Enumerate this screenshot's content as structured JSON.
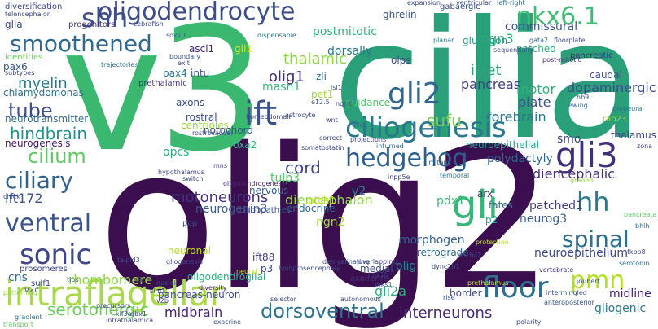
{
  "words": [
    {
      "text": "olig2",
      "color": "#3b0f4f"
    },
    {
      "text": "cilia",
      "color": "#2aa07a"
    },
    {
      "text": "v3",
      "color": "#3ab86f"
    },
    {
      "text": "intraflagellar",
      "color": "#a9d84a"
    },
    {
      "text": "oligodendrocyte",
      "color": "#3d4d8a"
    },
    {
      "text": "ciliogenesis",
      "color": "#2a788e"
    },
    {
      "text": "hedgehog",
      "color": "#2b5f8d"
    },
    {
      "text": "smoothened",
      "color": "#2f6b8e"
    },
    {
      "text": "shh",
      "color": "#3d4e8a"
    },
    {
      "text": "nkx6.1",
      "color": "#3fbc73"
    },
    {
      "text": "ift",
      "color": "#3b528b"
    },
    {
      "text": "gli2",
      "color": "#31668e"
    },
    {
      "text": "gli3",
      "color": "#42307a"
    },
    {
      "text": "gli",
      "color": "#35b779"
    },
    {
      "text": "hh",
      "color": "#2a7b8e"
    },
    {
      "text": "spinal",
      "color": "#2c728e"
    },
    {
      "text": "floor",
      "color": "#2d708e"
    },
    {
      "text": "pmn",
      "color": "#b5de2b"
    },
    {
      "text": "cilium",
      "color": "#5ec962"
    },
    {
      "text": "ciliary",
      "color": "#33638d"
    },
    {
      "text": "ventral",
      "color": "#3a538b"
    },
    {
      "text": "sonic",
      "color": "#3f4788"
    },
    {
      "text": "serotonergic",
      "color": "#6ccd5a"
    },
    {
      "text": "dorsoventral",
      "color": "#2c738e"
    },
    {
      "text": "midbrain",
      "color": "#482677"
    },
    {
      "text": "interneurons",
      "color": "#472a7a"
    },
    {
      "text": "hindbrain",
      "color": "#20928c"
    },
    {
      "text": "tube",
      "color": "#3c4f8a"
    },
    {
      "text": "myelin",
      "color": "#297a8e"
    },
    {
      "text": "motoneurons",
      "color": "#46337e"
    },
    {
      "text": "cord",
      "color": "#404688"
    },
    {
      "text": "sufu",
      "color": "#7ad151"
    },
    {
      "text": "ngn3",
      "color": "#3ba676"
    },
    {
      "text": "thalamic",
      "color": "#8fd744"
    },
    {
      "text": "olig1",
      "color": "#472c7a"
    },
    {
      "text": "zli",
      "color": "#2c728e"
    },
    {
      "text": "mash1",
      "color": "#35b779"
    },
    {
      "text": "islet",
      "color": "#2ea37d"
    },
    {
      "text": "pancreas",
      "color": "#433e85"
    },
    {
      "text": "motor",
      "color": "#2db27d"
    },
    {
      "text": "forebrain",
      "color": "#2a788e"
    },
    {
      "text": "plate",
      "color": "#3b528b"
    },
    {
      "text": "dopaminergic",
      "color": "#3e4a89"
    },
    {
      "text": "smo",
      "color": "#414487"
    },
    {
      "text": "thalamus",
      "color": "#3e4989"
    },
    {
      "text": "neuroepithelial",
      "color": "#1f9f88"
    },
    {
      "text": "polydactyly",
      "color": "#32658e"
    },
    {
      "text": "diencephalic",
      "color": "#472f7d"
    },
    {
      "text": "diencephalon",
      "color": "#90d743"
    },
    {
      "text": "tulp3",
      "color": "#54c568"
    },
    {
      "text": "neurogenin3",
      "color": "#38598c"
    },
    {
      "text": "endocrine",
      "color": "#31678e"
    },
    {
      "text": "ngn2",
      "color": "#9dd93b"
    },
    {
      "text": "ptch1",
      "color": "#c2df23"
    },
    {
      "text": "cilioppathies",
      "color": "#3b528b"
    },
    {
      "text": "nervous",
      "color": "#355f8d"
    },
    {
      "text": "v2",
      "color": "#27808e"
    },
    {
      "text": "pdx1",
      "color": "#3dbc74"
    },
    {
      "text": "arx",
      "color": "#46327e"
    },
    {
      "text": "fates",
      "color": "#2d718e"
    },
    {
      "text": "p2",
      "color": "#20a386"
    },
    {
      "text": "patched1",
      "color": "#443a83"
    },
    {
      "text": "neurog3",
      "color": "#365c8d"
    },
    {
      "text": "neuroepithelium",
      "color": "#3e4989"
    },
    {
      "text": "olig",
      "color": "#25858e"
    },
    {
      "text": "morphogen",
      "color": "#34618d"
    },
    {
      "text": "retrograde",
      "color": "#31688e"
    },
    {
      "text": "midline",
      "color": "#481f70"
    },
    {
      "text": "gliogenic",
      "color": "#2a788e"
    },
    {
      "text": "gli2a",
      "color": "#2ab07f"
    },
    {
      "text": "ift172",
      "color": "#3b528b"
    },
    {
      "text": "rhombomere",
      "color": "#8bd646"
    },
    {
      "text": "cns",
      "color": "#2e6e8e"
    },
    {
      "text": "v2c",
      "color": "#3f4889"
    },
    {
      "text": "oligodendroglial",
      "color": "#29af7f"
    },
    {
      "text": "ift88",
      "color": "#453882"
    },
    {
      "text": "p3",
      "color": "#3e4c8a"
    },
    {
      "text": "neuronal",
      "color": "#b8de29"
    },
    {
      "text": "postmitotic",
      "color": "#2fb47c"
    },
    {
      "text": "dorsally",
      "color": "#2a788e"
    },
    {
      "text": "commissural",
      "color": "#3b528b"
    },
    {
      "text": "glucagon",
      "color": "#1fa088"
    },
    {
      "text": "patched",
      "color": "#2db27d"
    },
    {
      "text": "caudal",
      "color": "#3c508b"
    },
    {
      "text": "olps",
      "color": "#3e4a89"
    },
    {
      "text": "pet1",
      "color": "#a2da37"
    },
    {
      "text": "guidance",
      "color": "#50c46a"
    },
    {
      "text": "chlamydomonas",
      "color": "#2c738e"
    },
    {
      "text": "pax6",
      "color": "#38588c"
    },
    {
      "text": "identities",
      "color": "#6ccd5a"
    },
    {
      "text": "glia",
      "color": "#3e4989"
    },
    {
      "text": "ascl1",
      "color": "#482071"
    },
    {
      "text": "gli1",
      "color": "#d2e21b"
    },
    {
      "text": "pax4",
      "color": "#2b758e"
    },
    {
      "text": "intu",
      "color": "#3a548c"
    },
    {
      "text": "centrioles",
      "color": "#95d840"
    },
    {
      "text": "prethalamic",
      "color": "#46317e"
    },
    {
      "text": "axons",
      "color": "#3c4f8a"
    },
    {
      "text": "rostral",
      "color": "#3e4989"
    },
    {
      "text": "notochord",
      "color": "#3b518b"
    },
    {
      "text": "neurotransmitter",
      "color": "#2e6d8e"
    },
    {
      "text": "neurogenesis",
      "color": "#481769"
    },
    {
      "text": "opcs",
      "color": "#29af7f"
    },
    {
      "text": "foxa2",
      "color": "#2fb47c"
    },
    {
      "text": "ghrelin",
      "color": "#3b528b"
    },
    {
      "text": "diversification",
      "color": "#3e4a89"
    },
    {
      "text": "gabaergic",
      "color": "#3b528b"
    },
    {
      "text": "progenitors",
      "color": "#46337e"
    },
    {
      "text": "telencephalon",
      "color": "#3e4989"
    },
    {
      "text": "zebrafish",
      "color": "#3e4c8a"
    },
    {
      "text": "sox10",
      "color": "#355e8d"
    },
    {
      "text": "dispensable",
      "color": "#2d718e"
    },
    {
      "text": "expansion",
      "color": "#3e4989"
    },
    {
      "text": "ventricular",
      "color": "#3d4d8a"
    },
    {
      "text": "left-right",
      "color": "#2e6f8e"
    },
    {
      "text": "pancreatic",
      "color": "#46307e"
    },
    {
      "text": "floorplate",
      "color": "#3e4a89"
    },
    {
      "text": "gata2",
      "color": "#31688e"
    },
    {
      "text": "post-mitotic",
      "color": "#481f70"
    },
    {
      "text": "sequentially",
      "color": "#3e4a89"
    },
    {
      "text": "planar",
      "color": "#2a788e"
    },
    {
      "text": "hb9",
      "color": "#3b528b"
    },
    {
      "text": "ewing",
      "color": "#33638d"
    },
    {
      "text": "rab23",
      "color": "#9fda3a"
    },
    {
      "text": "proneural",
      "color": "#2c738e"
    },
    {
      "text": "zona",
      "color": "#3f4788"
    },
    {
      "text": "pancreata",
      "color": "#5ec962"
    },
    {
      "text": "bhlh",
      "color": "#2e6e8e"
    },
    {
      "text": "fkbp8",
      "color": "#3e4989"
    },
    {
      "text": "serotonin",
      "color": "#2d708e"
    },
    {
      "text": "anteroposterior",
      "color": "#3b528b"
    },
    {
      "text": "intermingled",
      "color": "#3e4c8a"
    },
    {
      "text": "joubert",
      "color": "#3b528b"
    },
    {
      "text": "vertebrate",
      "color": "#46327e"
    },
    {
      "text": "graded",
      "color": "#95d840"
    },
    {
      "text": "hypothalamus",
      "color": "#3e4989"
    },
    {
      "text": "rostrocaudal",
      "color": "#3e4a89"
    },
    {
      "text": "homeodomain",
      "color": "#3f4889"
    },
    {
      "text": "astrocyte",
      "color": "#3e4989"
    },
    {
      "text": "correct",
      "color": "#3e4989"
    },
    {
      "text": "isl1",
      "color": "#3b528b"
    },
    {
      "text": "wnt",
      "color": "#3e4a89"
    },
    {
      "text": "e12.5",
      "color": "#3b528b"
    },
    {
      "text": "glial",
      "color": "#2e6e8e"
    },
    {
      "text": "projections",
      "color": "#3e4a89"
    },
    {
      "text": "inturned",
      "color": "#2e6f8e"
    },
    {
      "text": "somatostatin",
      "color": "#3e4989"
    },
    {
      "text": "limitans",
      "color": "#33638d"
    },
    {
      "text": "temporal",
      "color": "#2c738e"
    },
    {
      "text": "inpp5e",
      "color": "#3e4989"
    },
    {
      "text": "mns",
      "color": "#3e4a89"
    },
    {
      "text": "subtypes",
      "color": "#3e4989"
    },
    {
      "text": "trajectories",
      "color": "#2d718e"
    },
    {
      "text": "boundary",
      "color": "#3b528b"
    },
    {
      "text": "chick",
      "color": "#3e4a89"
    },
    {
      "text": "oligodendrogenesis",
      "color": "#481f70"
    },
    {
      "text": "switch",
      "color": "#3e4989"
    },
    {
      "text": "prosomeres",
      "color": "#3e4989"
    },
    {
      "text": "tips",
      "color": "#3b528b"
    },
    {
      "text": "diversity",
      "color": "#482071"
    },
    {
      "text": "sim1",
      "color": "#3e4a89"
    },
    {
      "text": "v1",
      "color": "#3b528b"
    },
    {
      "text": "talpid3",
      "color": "#3e4989"
    },
    {
      "text": "sulf1",
      "color": "#3e4a89"
    },
    {
      "text": "patterning",
      "color": "#95d840"
    },
    {
      "text": "gradient",
      "color": "#2e6e8e"
    },
    {
      "text": "transport",
      "color": "#5ec962"
    },
    {
      "text": "intrathalamica",
      "color": "#3e4989"
    },
    {
      "text": "kif3a",
      "color": "#3b528b"
    },
    {
      "text": "dbx1",
      "color": "#3e4a89"
    },
    {
      "text": "precursors",
      "color": "#3e4989"
    },
    {
      "text": "nuclei",
      "color": "#3b528b"
    },
    {
      "text": "v2b",
      "color": "#3e4989"
    },
    {
      "text": "exit",
      "color": "#3e4a89"
    },
    {
      "text": "ngn1",
      "color": "#3e4989"
    },
    {
      "text": "pancreas-neuron",
      "color": "#3e4989"
    },
    {
      "text": "neural",
      "color": "#c2df23"
    },
    {
      "text": "holoprosencephaly",
      "color": "#3e4a89"
    },
    {
      "text": "demyelinating",
      "color": "#3b528b"
    },
    {
      "text": "overlapping",
      "color": "#3e4989"
    },
    {
      "text": "lmx1b",
      "color": "#3e4989"
    },
    {
      "text": "mks1",
      "color": "#3b528b"
    },
    {
      "text": "medial",
      "color": "#3e4a89"
    },
    {
      "text": "axoneme",
      "color": "#46327e"
    },
    {
      "text": "exocrine",
      "color": "#3b528b"
    },
    {
      "text": "selector",
      "color": "#3e4989"
    },
    {
      "text": "autonomous",
      "color": "#3e4a89"
    },
    {
      "text": "rise",
      "color": "#3b528b"
    },
    {
      "text": "dync2h1",
      "color": "#3e4989"
    },
    {
      "text": "border",
      "color": "#3e4a89"
    },
    {
      "text": "prethalamus",
      "color": "#c2df23"
    },
    {
      "text": "dnchc2",
      "color": "#3e4989"
    },
    {
      "text": "protection",
      "color": "#b5de2b"
    },
    {
      "text": "pcp",
      "color": "#3b528b"
    },
    {
      "text": "gliogenesis",
      "color": "#3e4989"
    },
    {
      "text": "polarity",
      "color": "#3e4a89"
    },
    {
      "text": "anterior",
      "color": "#3b528b"
    }
  ]
}
